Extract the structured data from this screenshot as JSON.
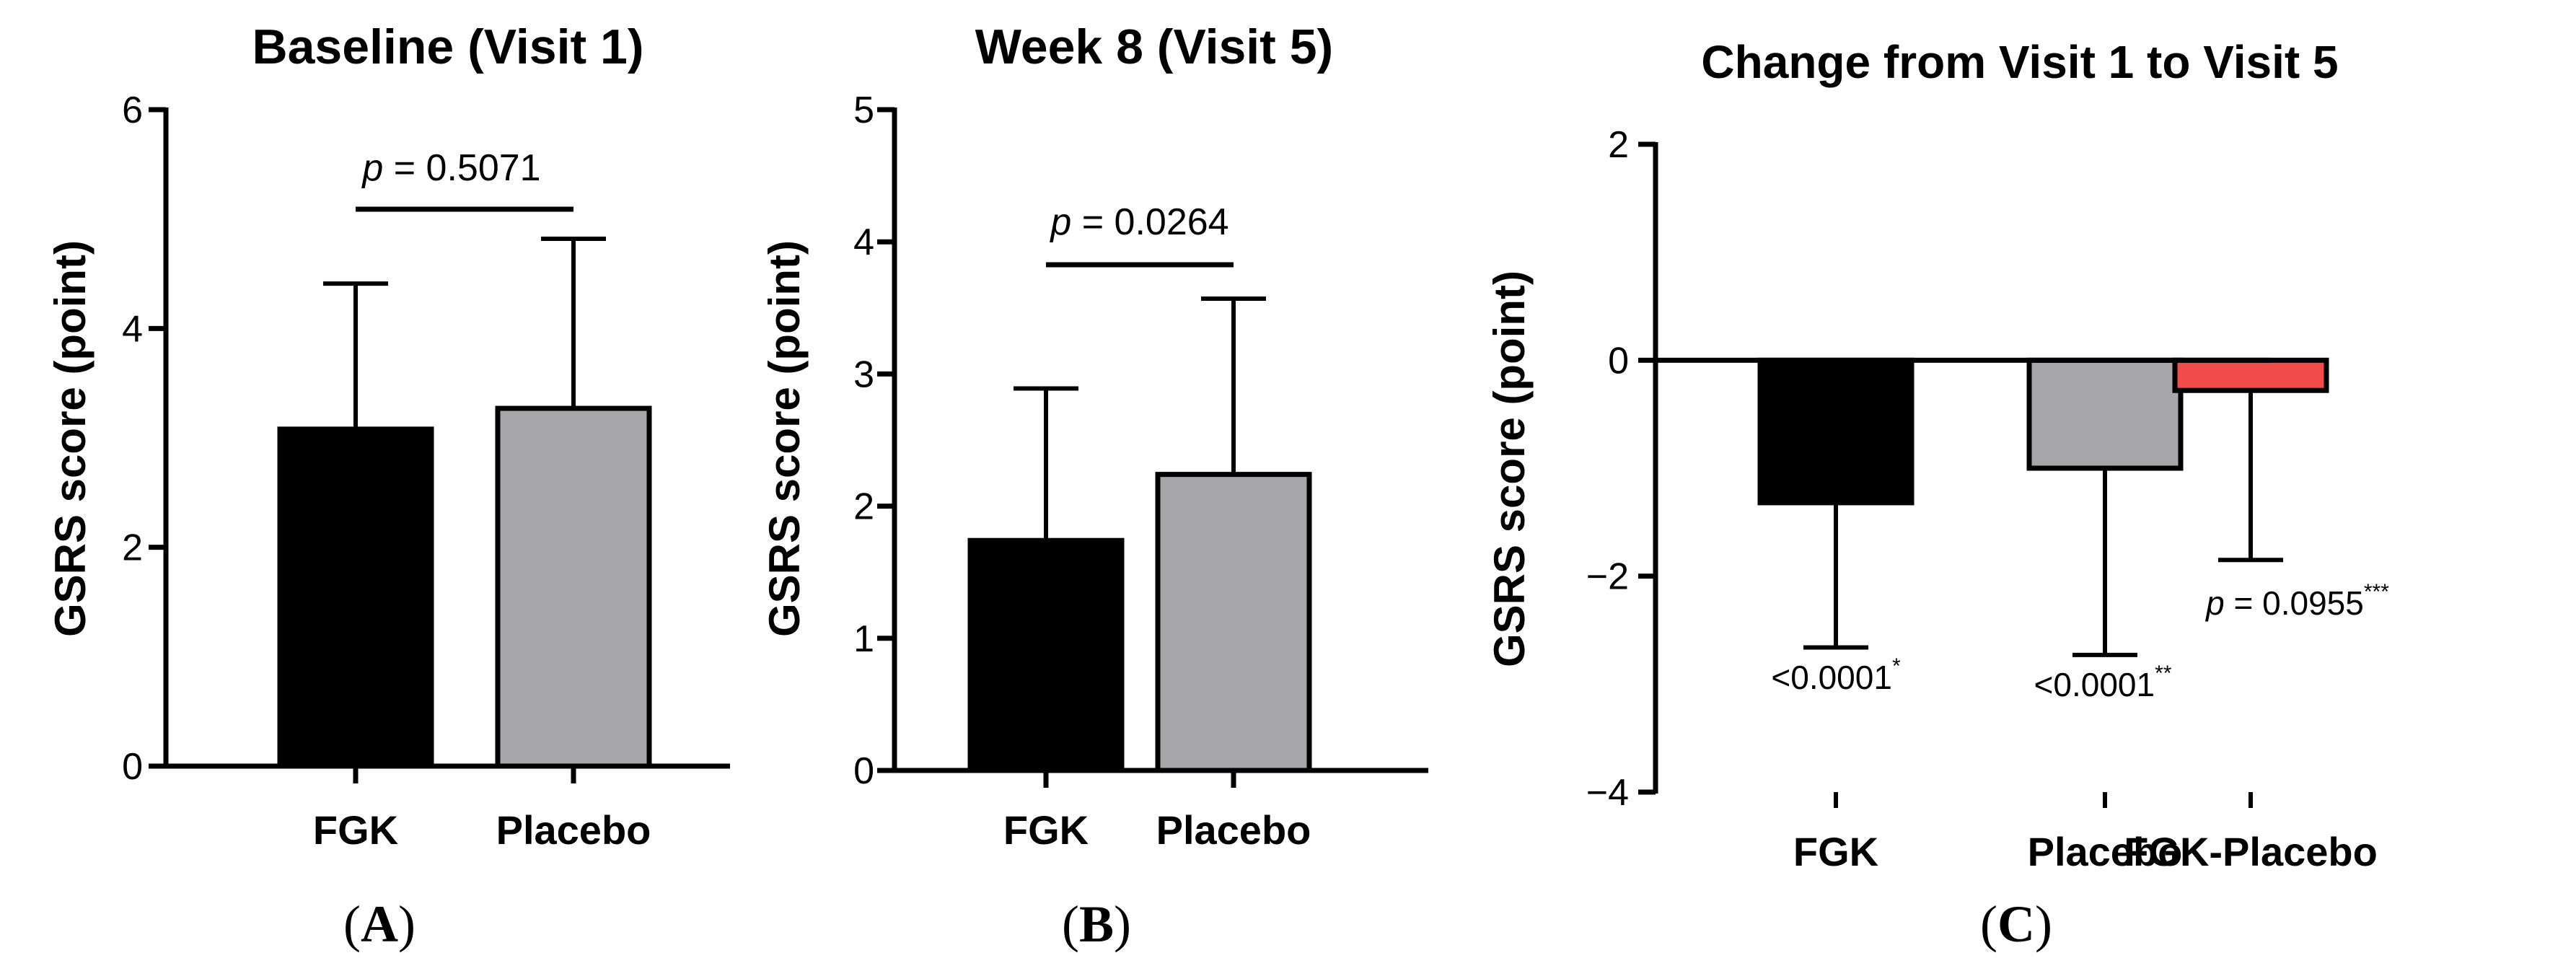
{
  "figure": {
    "panels": [
      {
        "letter": "A",
        "open": "(",
        "close": ")"
      },
      {
        "letter": "B",
        "open": "(",
        "close": ")"
      },
      {
        "letter": "C",
        "open": "(",
        "close": ")"
      }
    ]
  },
  "chart_data": [
    {
      "type": "bar",
      "title": "Baseline (Visit 1)",
      "ylabel": "GSRS score (point)",
      "xlabel": "",
      "categories": [
        "FGK",
        "Placebo"
      ],
      "values": [
        3.08,
        3.27
      ],
      "error_plus": [
        1.33,
        1.55
      ],
      "colors": [
        "#000000",
        "#a6a6a9"
      ],
      "ylim": [
        0,
        6
      ],
      "yticks": [
        0,
        2,
        4,
        6
      ],
      "ytick_labels": [
        "0",
        "2",
        "4",
        "6"
      ],
      "comparison": {
        "p_label": "p",
        "p_value": " = 0.5071"
      }
    },
    {
      "type": "bar",
      "title": "Week 8 (Visit 5)",
      "ylabel": "GSRS score (point)",
      "xlabel": "",
      "categories": [
        "FGK",
        "Placebo"
      ],
      "values": [
        1.74,
        2.24
      ],
      "error_plus": [
        1.15,
        1.33
      ],
      "colors": [
        "#000000",
        "#a6a6a9"
      ],
      "ylim": [
        0,
        5
      ],
      "yticks": [
        0,
        1,
        2,
        3,
        4,
        5
      ],
      "ytick_labels": [
        "0",
        "1",
        "2",
        "3",
        "4",
        "5"
      ],
      "comparison": {
        "p_label": "p",
        "p_value": " = 0.0264"
      }
    },
    {
      "type": "bar",
      "title": "Change from Visit 1 to Visit 5",
      "ylabel": "GSRS score (point)",
      "xlabel": "",
      "categories": [
        "FGK",
        "Placebo",
        "FGK-Placebo"
      ],
      "values": [
        -1.32,
        -1.0,
        -0.28
      ],
      "error_minus": [
        1.34,
        1.73,
        1.57
      ],
      "colors": [
        "#000000",
        "#a6a6a9",
        "#f24b4b"
      ],
      "ylim": [
        -4,
        2
      ],
      "yticks": [
        -4,
        -2,
        0,
        2
      ],
      "ytick_labels": [
        "−4",
        "−2",
        "0",
        "2"
      ],
      "annotations": [
        {
          "p_label": "",
          "text": "<0.0001",
          "sup": "*"
        },
        {
          "p_label": "",
          "text": "<0.0001",
          "sup": "**"
        },
        {
          "p_label": "p",
          "text": " = 0.0955",
          "sup": "***"
        }
      ]
    }
  ]
}
